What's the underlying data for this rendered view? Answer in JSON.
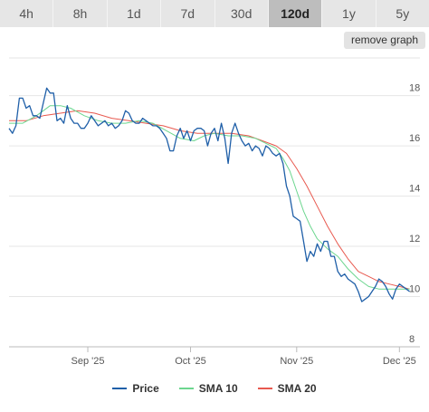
{
  "tabs": [
    {
      "label": "4h",
      "active": false
    },
    {
      "label": "8h",
      "active": false
    },
    {
      "label": "1d",
      "active": false
    },
    {
      "label": "7d",
      "active": false
    },
    {
      "label": "30d",
      "active": false
    },
    {
      "label": "120d",
      "active": true
    },
    {
      "label": "1y",
      "active": false
    },
    {
      "label": "5y",
      "active": false
    }
  ],
  "remove_graph_label": "remove graph",
  "colors": {
    "price": "#1f5fa8",
    "sma10": "#6cd68f",
    "sma20": "#e8594f",
    "grid": "#e6e6e6"
  },
  "chart_data": {
    "type": "line",
    "x_labels": [
      "Sep '25",
      "Oct '25",
      "Nov '25",
      "Dec '25"
    ],
    "x_label_days": [
      23,
      53,
      84,
      114
    ],
    "y_ticks": [
      8,
      10,
      12,
      14,
      16,
      18
    ],
    "ylim": [
      8,
      19.5
    ],
    "xlim": [
      0,
      120
    ],
    "grid": true,
    "legend_position": "bottom-center",
    "series": [
      {
        "name": "Price",
        "key": "price",
        "points": [
          [
            0,
            16.7
          ],
          [
            1,
            16.5
          ],
          [
            2,
            16.8
          ],
          [
            3,
            17.9
          ],
          [
            4,
            17.9
          ],
          [
            5,
            17.5
          ],
          [
            6,
            17.6
          ],
          [
            7,
            17.2
          ],
          [
            8,
            17.2
          ],
          [
            9,
            17.1
          ],
          [
            10,
            17.7
          ],
          [
            11,
            18.3
          ],
          [
            12,
            18.1
          ],
          [
            13,
            18.1
          ],
          [
            14,
            17.0
          ],
          [
            15,
            17.1
          ],
          [
            16,
            16.9
          ],
          [
            17,
            17.6
          ],
          [
            18,
            17.1
          ],
          [
            19,
            16.9
          ],
          [
            20,
            16.9
          ],
          [
            21,
            16.7
          ],
          [
            22,
            16.7
          ],
          [
            23,
            16.9
          ],
          [
            24,
            17.2
          ],
          [
            25,
            17.0
          ],
          [
            26,
            16.8
          ],
          [
            27,
            16.9
          ],
          [
            28,
            17.0
          ],
          [
            29,
            16.8
          ],
          [
            30,
            16.9
          ],
          [
            31,
            16.7
          ],
          [
            32,
            16.8
          ],
          [
            33,
            17.0
          ],
          [
            34,
            17.4
          ],
          [
            35,
            17.3
          ],
          [
            36,
            17.0
          ],
          [
            37,
            16.9
          ],
          [
            38,
            16.9
          ],
          [
            39,
            17.1
          ],
          [
            40,
            17.0
          ],
          [
            41,
            16.9
          ],
          [
            42,
            16.8
          ],
          [
            43,
            16.8
          ],
          [
            44,
            16.7
          ],
          [
            45,
            16.5
          ],
          [
            46,
            16.3
          ],
          [
            47,
            15.8
          ],
          [
            48,
            15.8
          ],
          [
            49,
            16.4
          ],
          [
            50,
            16.7
          ],
          [
            51,
            16.3
          ],
          [
            52,
            16.6
          ],
          [
            53,
            16.2
          ],
          [
            54,
            16.6
          ],
          [
            55,
            16.7
          ],
          [
            56,
            16.7
          ],
          [
            57,
            16.6
          ],
          [
            58,
            16.0
          ],
          [
            59,
            16.5
          ],
          [
            60,
            16.7
          ],
          [
            61,
            16.2
          ],
          [
            62,
            16.9
          ],
          [
            63,
            16.3
          ],
          [
            64,
            15.3
          ],
          [
            65,
            16.5
          ],
          [
            66,
            16.9
          ],
          [
            67,
            16.5
          ],
          [
            68,
            16.2
          ],
          [
            69,
            16.0
          ],
          [
            70,
            16.1
          ],
          [
            71,
            15.8
          ],
          [
            72,
            16.0
          ],
          [
            73,
            15.9
          ],
          [
            74,
            15.6
          ],
          [
            75,
            16.0
          ],
          [
            76,
            15.9
          ],
          [
            77,
            15.7
          ],
          [
            78,
            15.6
          ],
          [
            79,
            15.7
          ],
          [
            80,
            15.3
          ],
          [
            81,
            14.4
          ],
          [
            82,
            14.0
          ],
          [
            83,
            13.2
          ],
          [
            84,
            13.1
          ],
          [
            85,
            13.0
          ],
          [
            86,
            12.2
          ],
          [
            87,
            11.4
          ],
          [
            88,
            11.8
          ],
          [
            89,
            11.6
          ],
          [
            90,
            12.1
          ],
          [
            91,
            11.8
          ],
          [
            92,
            12.2
          ],
          [
            93,
            12.2
          ],
          [
            94,
            11.6
          ],
          [
            95,
            11.6
          ],
          [
            96,
            11.0
          ],
          [
            97,
            10.8
          ],
          [
            98,
            10.9
          ],
          [
            99,
            10.7
          ],
          [
            100,
            10.6
          ],
          [
            101,
            10.5
          ],
          [
            102,
            10.2
          ],
          [
            103,
            9.8
          ],
          [
            104,
            9.9
          ],
          [
            105,
            10.0
          ],
          [
            106,
            10.2
          ],
          [
            107,
            10.4
          ],
          [
            108,
            10.7
          ],
          [
            109,
            10.6
          ],
          [
            110,
            10.4
          ],
          [
            111,
            10.1
          ],
          [
            112,
            9.9
          ],
          [
            113,
            10.3
          ],
          [
            114,
            10.5
          ],
          [
            115,
            10.4
          ],
          [
            116,
            10.3
          ],
          [
            117,
            10.2
          ]
        ]
      },
      {
        "name": "SMA 10",
        "key": "sma10",
        "points": [
          [
            0,
            16.9
          ],
          [
            4,
            16.9
          ],
          [
            8,
            17.2
          ],
          [
            10,
            17.4
          ],
          [
            12,
            17.6
          ],
          [
            15,
            17.6
          ],
          [
            18,
            17.5
          ],
          [
            22,
            17.2
          ],
          [
            26,
            17.0
          ],
          [
            30,
            16.9
          ],
          [
            34,
            16.9
          ],
          [
            38,
            17.0
          ],
          [
            42,
            16.9
          ],
          [
            46,
            16.6
          ],
          [
            50,
            16.3
          ],
          [
            54,
            16.2
          ],
          [
            57,
            16.4
          ],
          [
            60,
            16.5
          ],
          [
            64,
            16.4
          ],
          [
            68,
            16.4
          ],
          [
            72,
            16.3
          ],
          [
            75,
            16.1
          ],
          [
            78,
            15.9
          ],
          [
            80,
            15.5
          ],
          [
            82,
            15.0
          ],
          [
            84,
            14.2
          ],
          [
            86,
            13.4
          ],
          [
            88,
            12.8
          ],
          [
            90,
            12.3
          ],
          [
            93,
            11.9
          ],
          [
            96,
            11.6
          ],
          [
            99,
            11.1
          ],
          [
            102,
            10.7
          ],
          [
            105,
            10.4
          ],
          [
            108,
            10.3
          ],
          [
            111,
            10.3
          ],
          [
            114,
            10.3
          ],
          [
            117,
            10.3
          ]
        ]
      },
      {
        "name": "SMA 20",
        "key": "sma20",
        "points": [
          [
            0,
            17.0
          ],
          [
            5,
            17.0
          ],
          [
            10,
            17.2
          ],
          [
            15,
            17.3
          ],
          [
            20,
            17.4
          ],
          [
            25,
            17.3
          ],
          [
            30,
            17.1
          ],
          [
            35,
            17.0
          ],
          [
            40,
            16.9
          ],
          [
            45,
            16.8
          ],
          [
            50,
            16.6
          ],
          [
            55,
            16.5
          ],
          [
            60,
            16.5
          ],
          [
            65,
            16.5
          ],
          [
            70,
            16.4
          ],
          [
            74,
            16.2
          ],
          [
            78,
            16.0
          ],
          [
            81,
            15.7
          ],
          [
            84,
            15.1
          ],
          [
            87,
            14.4
          ],
          [
            90,
            13.6
          ],
          [
            93,
            12.8
          ],
          [
            96,
            12.1
          ],
          [
            99,
            11.5
          ],
          [
            102,
            11.0
          ],
          [
            105,
            10.8
          ],
          [
            108,
            10.6
          ],
          [
            111,
            10.5
          ],
          [
            114,
            10.4
          ],
          [
            117,
            10.3
          ]
        ]
      }
    ]
  }
}
